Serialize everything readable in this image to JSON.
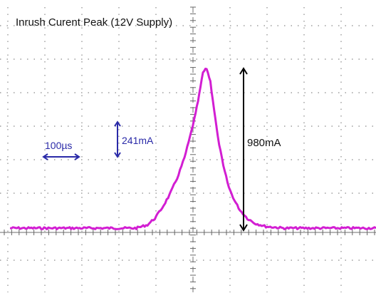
{
  "chart_data": {
    "type": "line",
    "title": "Inrush Curent Peak (12V Supply)",
    "xlabel": "",
    "ylabel": "",
    "time_per_div_us": 100,
    "current_per_div_mA": 241,
    "peak_label": "980mA",
    "xlim_us": [
      -521,
      521
    ],
    "ylim_mA": [
      -241,
      1446
    ],
    "series": [
      {
        "x_us": [
          -521,
          -180,
          -150,
          -130,
          -110,
          -90,
          -70,
          -50,
          -35,
          -20,
          -10,
          0,
          10,
          20,
          30,
          40,
          55,
          70,
          85,
          100,
          120,
          140,
          170,
          220,
          521
        ],
        "y_mA": [
          0,
          0,
          20,
          60,
          125,
          205,
          305,
          430,
          560,
          700,
          820,
          955,
          980,
          900,
          730,
          560,
          380,
          250,
          170,
          110,
          60,
          30,
          10,
          0,
          0
        ]
      }
    ],
    "colors": {
      "trace": "#d21ed2",
      "annotation": "#2a2aa8",
      "peak_arrow": "#000000",
      "grid": "#888888"
    },
    "annotations": [
      {
        "label": "100µs",
        "kind": "horizontal-scale",
        "value_us": 100,
        "color": "#2a2aa8"
      },
      {
        "label": "241mA",
        "kind": "vertical-scale",
        "value_mA": 241,
        "color": "#2a2aa8"
      },
      {
        "label": "980mA",
        "kind": "peak-height",
        "value_mA": 980,
        "color": "#000000"
      }
    ]
  }
}
